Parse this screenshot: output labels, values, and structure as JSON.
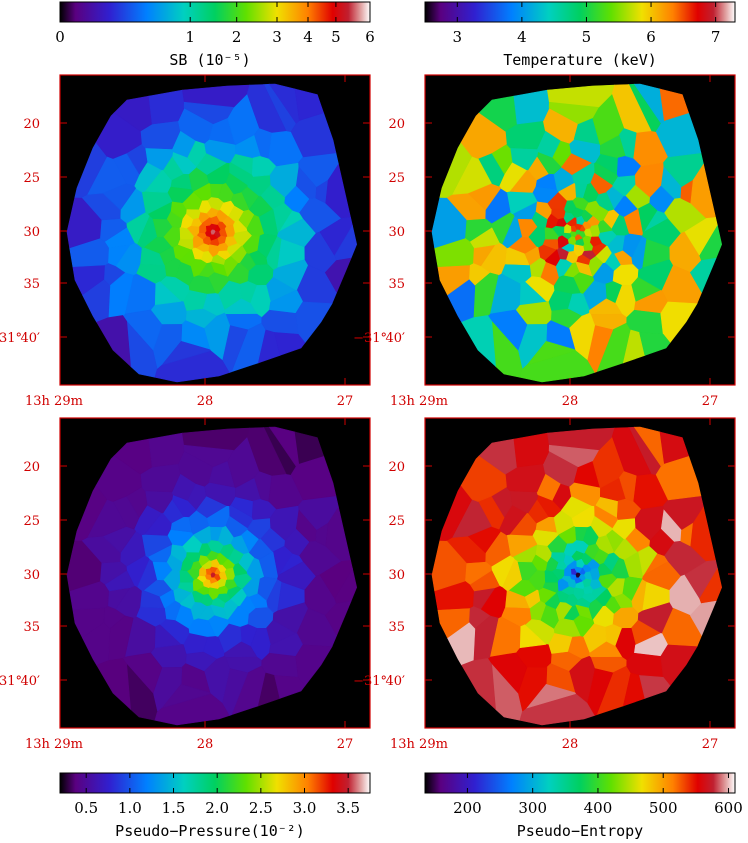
{
  "figure": {
    "axes": {
      "dec_labels": [
        "20",
        "25",
        "30",
        "35",
        "40′"
      ],
      "dec_prefix": "−31°",
      "ra_labels": [
        "13h 29m",
        "28",
        "27"
      ]
    },
    "axis_color": "#d00000"
  },
  "colorbars": [
    {
      "id": "sb",
      "label": "SB (10⁻⁵)",
      "ticks": [
        "0",
        "1",
        "2",
        "3",
        "4",
        "5",
        "6"
      ],
      "tick_values": [
        0,
        1,
        2,
        3,
        4,
        5,
        6
      ],
      "range": [
        0,
        6
      ],
      "scale": "nonlinear (compressed at high end)"
    },
    {
      "id": "temperature",
      "label": "Temperature (keV)",
      "ticks": [
        "3",
        "4",
        "5",
        "6",
        "7"
      ],
      "tick_values": [
        3,
        4,
        5,
        6,
        7
      ],
      "range": [
        2.5,
        7.3
      ]
    },
    {
      "id": "pressure",
      "label": "Pseudo−Pressure(10⁻²)",
      "ticks": [
        "0.5",
        "1.0",
        "1.5",
        "2.0",
        "2.5",
        "3.0",
        "3.5"
      ],
      "tick_values": [
        0.5,
        1.0,
        1.5,
        2.0,
        2.5,
        3.0,
        3.5
      ],
      "range": [
        0.2,
        3.75
      ]
    },
    {
      "id": "entropy",
      "label": "Pseudo−Entropy",
      "ticks": [
        "200",
        "300",
        "400",
        "500",
        "600"
      ],
      "tick_values": [
        200,
        300,
        400,
        500,
        600
      ],
      "range": [
        135,
        610
      ]
    }
  ],
  "chart_data": [
    {
      "type": "heatmap",
      "panel": "surface brightness map",
      "colorbar": "sb",
      "x_axis": "RA",
      "y_axis": "Dec",
      "pattern": "radial",
      "center_value": 5.6,
      "edge_value": 0.25
    },
    {
      "type": "heatmap",
      "panel": "temperature map",
      "colorbar": "temperature",
      "x_axis": "RA",
      "y_axis": "Dec",
      "pattern": "patchy",
      "typical_value": 5.1,
      "min_value": 3.6,
      "max_value": 6.8
    },
    {
      "type": "heatmap",
      "panel": "pseudo-pressure map",
      "colorbar": "pressure",
      "x_axis": "RA",
      "y_axis": "Dec",
      "pattern": "radial",
      "center_value": 3.5,
      "edge_value": 0.3
    },
    {
      "type": "heatmap",
      "panel": "pseudo-entropy map",
      "colorbar": "entropy",
      "x_axis": "RA",
      "y_axis": "Dec",
      "pattern": "radial-inverse",
      "center_value": 160,
      "edge_value": 560
    }
  ]
}
